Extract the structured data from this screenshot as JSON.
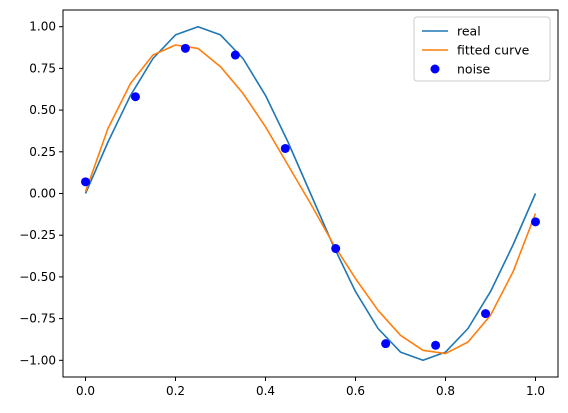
{
  "chart_data": {
    "type": "line",
    "title": "",
    "xlabel": "",
    "ylabel": "",
    "xlim": [
      -0.05,
      1.05
    ],
    "ylim": [
      -1.1,
      1.1
    ],
    "grid": false,
    "legend_position": "top-right",
    "x_ticks": [
      0.0,
      0.2,
      0.4,
      0.6,
      0.8,
      1.0
    ],
    "x_tick_labels": [
      "0.0",
      "0.2",
      "0.4",
      "0.6",
      "0.8",
      "1.0"
    ],
    "y_ticks": [
      1.0,
      0.75,
      0.5,
      0.25,
      0.0,
      -0.25,
      -0.5,
      -0.75,
      -1.0
    ],
    "y_tick_labels": [
      "1.00",
      "0.75",
      "0.50",
      "0.25",
      "0.00",
      "−0.25",
      "−0.50",
      "−0.75",
      "−1.00"
    ],
    "series": [
      {
        "name": "real",
        "kind": "line",
        "color": "#1f77b4",
        "x": [
          0.0,
          0.05,
          0.1,
          0.15,
          0.2,
          0.25,
          0.3,
          0.35,
          0.4,
          0.45,
          0.5,
          0.55,
          0.6,
          0.65,
          0.7,
          0.75,
          0.8,
          0.85,
          0.9,
          0.95,
          1.0
        ],
        "y": [
          0.0,
          0.309,
          0.588,
          0.809,
          0.951,
          1.0,
          0.951,
          0.809,
          0.588,
          0.309,
          0.0,
          -0.309,
          -0.588,
          -0.809,
          -0.951,
          -1.0,
          -0.951,
          -0.809,
          -0.588,
          -0.309,
          0.0
        ]
      },
      {
        "name": "fitted curve",
        "kind": "line",
        "color": "#ff7f0e",
        "x": [
          0.0,
          0.05,
          0.1,
          0.15,
          0.2,
          0.25,
          0.3,
          0.35,
          0.4,
          0.45,
          0.5,
          0.55,
          0.6,
          0.65,
          0.7,
          0.75,
          0.8,
          0.85,
          0.9,
          0.95,
          1.0
        ],
        "y": [
          0.01,
          0.39,
          0.66,
          0.83,
          0.89,
          0.87,
          0.76,
          0.6,
          0.4,
          0.17,
          -0.06,
          -0.3,
          -0.51,
          -0.7,
          -0.85,
          -0.94,
          -0.96,
          -0.89,
          -0.73,
          -0.47,
          -0.12
        ]
      },
      {
        "name": "noise",
        "kind": "scatter",
        "color": "#0000ff",
        "x": [
          0.0,
          0.111,
          0.222,
          0.333,
          0.444,
          0.556,
          0.667,
          0.778,
          0.889,
          1.0
        ],
        "y": [
          0.07,
          0.58,
          0.87,
          0.83,
          0.27,
          -0.33,
          -0.9,
          -0.91,
          -0.72,
          -0.17
        ]
      }
    ]
  }
}
